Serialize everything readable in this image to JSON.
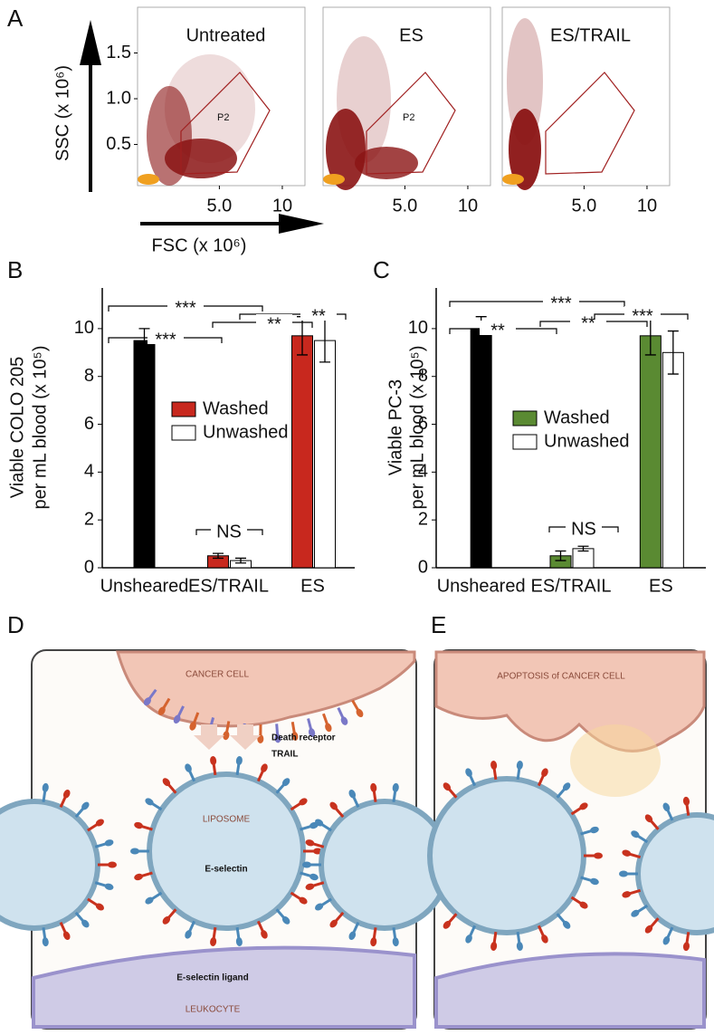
{
  "panel_a": {
    "label": "A",
    "plots": [
      "Untreated",
      "ES",
      "ES/TRAIL"
    ],
    "gate": "P2",
    "xlabel": "FSC (x 10⁶)",
    "ylabel": "SSC (x 10⁶)",
    "xlim": [
      -1.5,
      11.8
    ],
    "xticks": [
      {
        "value": 5,
        "label": "5.0"
      },
      10
    ],
    "ylim": [
      0.05,
      2.0
    ],
    "yticks": [
      {
        "value": 0.5,
        "label": "0.5"
      },
      {
        "value": 1,
        "label": "1.0"
      },
      1.5
    ]
  },
  "chart_data": [
    {
      "type": "bar",
      "label": "B",
      "ylabel": [
        "Viable COLO 205",
        "per mL blood (x 10⁵)"
      ],
      "categories": [
        "Unsheared",
        "ES/TRAIL",
        "ES"
      ],
      "series": [
        {
          "color": "#000000",
          "values": [
            9.5,
            null,
            null
          ],
          "errors": [
            0.5,
            null,
            null
          ]
        },
        {
          "name": "Washed",
          "color": "#c8281e",
          "values": [
            null,
            0.5,
            9.7
          ],
          "errors": [
            null,
            0.1,
            0.8
          ]
        },
        {
          "name": "Unwashed",
          "color": "#ffffff",
          "values": [
            null,
            0.3,
            9.5
          ],
          "errors": [
            null,
            0.1,
            0.9
          ]
        }
      ],
      "ylim": [
        0,
        11.7
      ],
      "yticks": [
        0,
        2,
        4,
        6,
        8,
        10
      ],
      "annotations": [
        "***",
        "**",
        "**",
        "***",
        "NS"
      ]
    },
    {
      "type": "bar",
      "label": "C",
      "ylabel": [
        "Viable PC-3",
        "per mL blood (x 10⁵)"
      ],
      "categories": [
        "Unsheared",
        "ES/TRAIL",
        "ES"
      ],
      "series": [
        {
          "color": "#000000",
          "values": [
            10,
            null,
            null
          ],
          "errors": [
            0.5,
            null,
            null
          ]
        },
        {
          "name": "Washed",
          "color": "#5a8a32",
          "values": [
            null,
            0.5,
            9.7
          ],
          "errors": [
            null,
            0.2,
            0.8
          ]
        },
        {
          "name": "Unwashed",
          "color": "#ffffff",
          "values": [
            null,
            0.8,
            9.0
          ],
          "errors": [
            null,
            0.1,
            0.9
          ]
        }
      ],
      "ylim": [
        0,
        11.7
      ],
      "yticks": [
        0,
        2,
        4,
        6,
        8,
        10
      ],
      "annotations": [
        "***",
        "**",
        "**",
        "***",
        "NS"
      ]
    }
  ],
  "panel_d": {
    "label": "D",
    "cancer_cell": "CANCER CELL",
    "death_receptor": "Death receptor",
    "trail": "TRAIL",
    "liposome": "LIPOSOME",
    "e_selectin": "E-selectin",
    "ligand": "E-selectin ligand",
    "leukocyte": "LEUKOCYTE"
  },
  "panel_e": {
    "label": "E",
    "apoptosis": "APOPTOSIS of CANCER CELL"
  }
}
